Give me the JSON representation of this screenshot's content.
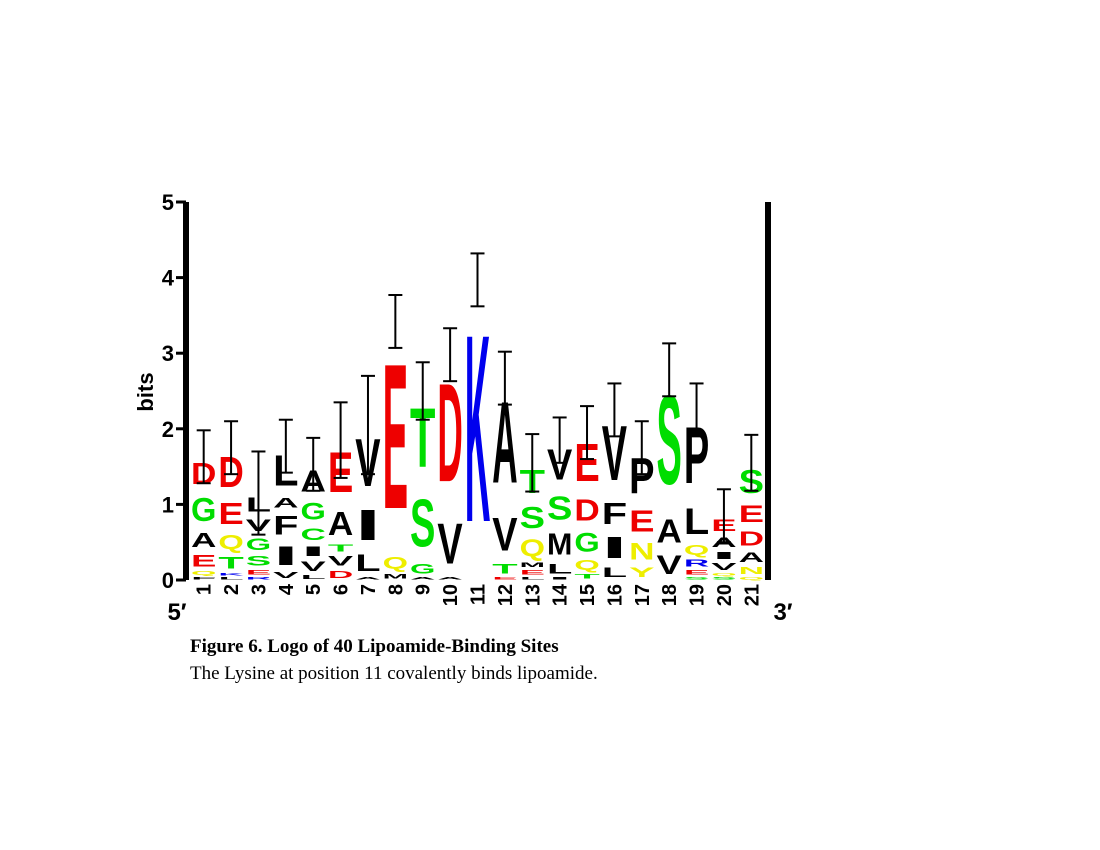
{
  "chart_data": {
    "type": "sequence-logo",
    "ylabel": "bits",
    "start_label": "5′",
    "end_label": "3′",
    "caption_title": "Figure 6. Logo of 40 Lipoamide-Binding Sites",
    "caption_text": "The Lysine at position 11 covalently binds lipoamide.",
    "ylim": [
      0,
      5
    ],
    "yticks": [
      0,
      1,
      2,
      3,
      4,
      5
    ],
    "colors": {
      "D": "#ee0000",
      "E": "#ee0000",
      "G": "#00dd00",
      "S": "#00dd00",
      "T": "#00dd00",
      "C": "#00dd00",
      "Q": "#eeee00",
      "N": "#eeee00",
      "Y": "#eeee00",
      "K": "#0000ee",
      "R": "#0000ee",
      "H": "#0000ee",
      "A": "#000000",
      "V": "#000000",
      "L": "#000000",
      "I": "#000000",
      "F": "#000000",
      "M": "#000000",
      "P": "#000000",
      "W": "#000000"
    },
    "categories": [
      "1",
      "2",
      "3",
      "4",
      "5",
      "6",
      "7",
      "8",
      "9",
      "10",
      "11",
      "12",
      "13",
      "14",
      "15",
      "16",
      "17",
      "18",
      "19",
      "20",
      "21"
    ],
    "stacks": [
      [
        {
          "letter": "F",
          "height": 0.05
        },
        {
          "letter": "Q",
          "height": 0.08
        },
        {
          "letter": "E",
          "height": 0.25
        },
        {
          "letter": "A",
          "height": 0.3
        },
        {
          "letter": "G",
          "height": 0.5
        },
        {
          "letter": "D",
          "height": 0.45
        }
      ],
      [
        {
          "letter": "L",
          "height": 0.05
        },
        {
          "letter": "K",
          "height": 0.05
        },
        {
          "letter": "T",
          "height": 0.25
        },
        {
          "letter": "Q",
          "height": 0.3
        },
        {
          "letter": "E",
          "height": 0.45
        },
        {
          "letter": "D",
          "height": 0.65
        }
      ],
      [
        {
          "letter": "R",
          "height": 0.05
        },
        {
          "letter": "E",
          "height": 0.1
        },
        {
          "letter": "S",
          "height": 0.2
        },
        {
          "letter": "G",
          "height": 0.25
        },
        {
          "letter": "V",
          "height": 0.25
        },
        {
          "letter": "L",
          "height": 0.3
        }
      ],
      [
        {
          "letter": "V",
          "height": 0.12
        },
        {
          "letter": "I",
          "height": 0.4
        },
        {
          "letter": "F",
          "height": 0.4
        },
        {
          "letter": "A",
          "height": 0.2
        },
        {
          "letter": "L",
          "height": 0.65
        }
      ],
      [
        {
          "letter": "L",
          "height": 0.08
        },
        {
          "letter": "V",
          "height": 0.2
        },
        {
          "letter": "I",
          "height": 0.2
        },
        {
          "letter": "C",
          "height": 0.25
        },
        {
          "letter": "G",
          "height": 0.35
        },
        {
          "letter": "A",
          "height": 0.45
        }
      ],
      [
        {
          "letter": "D",
          "height": 0.15
        },
        {
          "letter": "V",
          "height": 0.2
        },
        {
          "letter": "T",
          "height": 0.15
        },
        {
          "letter": "A",
          "height": 0.5
        },
        {
          "letter": "E",
          "height": 0.85
        }
      ],
      [
        {
          "letter": "A",
          "height": 0.05
        },
        {
          "letter": "L",
          "height": 0.35
        },
        {
          "letter": "I",
          "height": 0.65
        },
        {
          "letter": "V",
          "height": 1.0
        }
      ],
      [
        {
          "letter": "M",
          "height": 0.1
        },
        {
          "letter": "Q",
          "height": 0.25
        },
        {
          "letter": "E",
          "height": 3.07
        }
      ],
      [
        {
          "letter": "A",
          "height": 0.05
        },
        {
          "letter": "G",
          "height": 0.2
        },
        {
          "letter": "S",
          "height": 1.0
        },
        {
          "letter": "T",
          "height": 1.25
        }
      ],
      [
        {
          "letter": "A",
          "height": 0.05
        },
        {
          "letter": "V",
          "height": 0.85
        },
        {
          "letter": "D",
          "height": 2.08
        }
      ],
      [
        {
          "letter": "K",
          "height": 3.97
        }
      ],
      [
        {
          "letter": "E",
          "height": 0.05
        },
        {
          "letter": "T",
          "height": 0.2
        },
        {
          "letter": "V",
          "height": 0.7
        },
        {
          "letter": "A",
          "height": 1.72
        }
      ],
      [
        {
          "letter": "L",
          "height": 0.05
        },
        {
          "letter": "E",
          "height": 0.1
        },
        {
          "letter": "M",
          "height": 0.1
        },
        {
          "letter": "Q",
          "height": 0.35
        },
        {
          "letter": "S",
          "height": 0.45
        },
        {
          "letter": "T",
          "height": 0.5
        }
      ],
      [
        {
          "letter": "I",
          "height": 0.05
        },
        {
          "letter": "L",
          "height": 0.2
        },
        {
          "letter": "M",
          "height": 0.45
        },
        {
          "letter": "S",
          "height": 0.5
        },
        {
          "letter": "V",
          "height": 0.65
        }
      ],
      [
        {
          "letter": "T",
          "height": 0.1
        },
        {
          "letter": "Q",
          "height": 0.2
        },
        {
          "letter": "G",
          "height": 0.4
        },
        {
          "letter": "D",
          "height": 0.45
        },
        {
          "letter": "E",
          "height": 0.8
        }
      ],
      [
        {
          "letter": "L",
          "height": 0.2
        },
        {
          "letter": "I",
          "height": 0.45
        },
        {
          "letter": "F",
          "height": 0.45
        },
        {
          "letter": "V",
          "height": 1.15
        }
      ],
      [
        {
          "letter": "Y",
          "height": 0.2
        },
        {
          "letter": "N",
          "height": 0.35
        },
        {
          "letter": "E",
          "height": 0.45
        },
        {
          "letter": "P",
          "height": 0.75
        }
      ],
      [
        {
          "letter": "V",
          "height": 0.4
        },
        {
          "letter": "A",
          "height": 0.5
        },
        {
          "letter": "S",
          "height": 1.88
        }
      ],
      [
        {
          "letter": "S",
          "height": 0.05
        },
        {
          "letter": "E",
          "height": 0.1
        },
        {
          "letter": "R",
          "height": 0.15
        },
        {
          "letter": "Q",
          "height": 0.2
        },
        {
          "letter": "L",
          "height": 0.55
        },
        {
          "letter": "P",
          "height": 1.2
        }
      ],
      [
        {
          "letter": "S",
          "height": 0.05
        },
        {
          "letter": "Q",
          "height": 0.05
        },
        {
          "letter": "V",
          "height": 0.15
        },
        {
          "letter": "I",
          "height": 0.15
        },
        {
          "letter": "A",
          "height": 0.2
        },
        {
          "letter": "E",
          "height": 0.25
        }
      ],
      [
        {
          "letter": "Q",
          "height": 0.05
        },
        {
          "letter": "N",
          "height": 0.15
        },
        {
          "letter": "A",
          "height": 0.2
        },
        {
          "letter": "D",
          "height": 0.3
        },
        {
          "letter": "E",
          "height": 0.35
        },
        {
          "letter": "S",
          "height": 0.5
        }
      ]
    ],
    "errors": [
      0.35,
      0.35,
      0.55,
      0.35,
      0.35,
      0.5,
      0.65,
      0.35,
      0.38,
      0.35,
      0.35,
      0.35,
      0.38,
      0.3,
      0.35,
      0.35,
      0.35,
      0.35,
      0.35,
      0.35,
      0.37
    ]
  }
}
